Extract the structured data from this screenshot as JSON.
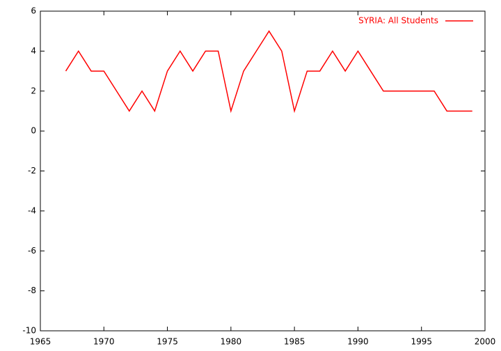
{
  "chart_data": {
    "type": "line",
    "x": [
      1967,
      1968,
      1969,
      1970,
      1971,
      1972,
      1973,
      1974,
      1975,
      1976,
      1977,
      1978,
      1979,
      1980,
      1981,
      1982,
      1983,
      1984,
      1985,
      1986,
      1987,
      1988,
      1989,
      1990,
      1991,
      1992,
      1993,
      1994,
      1995,
      1996,
      1997,
      1998,
      1999
    ],
    "series": [
      {
        "name": "SYRIA: All Students",
        "color": "#ff0000",
        "values": [
          3,
          4,
          3,
          3,
          2,
          1,
          2,
          1,
          3,
          4,
          3,
          4,
          4,
          1,
          3,
          4,
          5,
          4,
          1,
          3,
          3,
          4,
          3,
          4,
          3,
          2,
          2,
          2,
          2,
          2,
          1,
          1,
          1
        ]
      }
    ],
    "xlim": [
      1965,
      2000
    ],
    "xticks": [
      1965,
      1970,
      1975,
      1980,
      1985,
      1990,
      1995,
      2000
    ],
    "ylim": [
      -10,
      6
    ],
    "yticks": [
      -10,
      -8,
      -6,
      -4,
      -2,
      0,
      2,
      4,
      6
    ],
    "legend": "top-right"
  }
}
